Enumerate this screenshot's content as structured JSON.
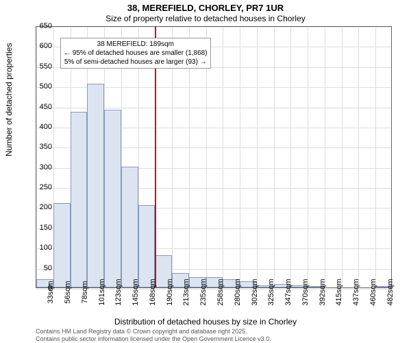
{
  "title_main": "38, MEREFIELD, CHORLEY, PR7 1UR",
  "title_sub": "Size of property relative to detached houses in Chorley",
  "ylabel": "Number of detached properties",
  "xlabel": "Distribution of detached houses by size in Chorley",
  "attribution_line1": "Contains HM Land Registry data © Crown copyright and database right 2025.",
  "attribution_line2": "Contains public sector information licensed under the Open Government Licence v3.0.",
  "info_line1": "38 MEREFIELD: 189sqm",
  "info_line2": "← 95% of detached houses are smaller (1,868)",
  "info_line3": "5% of semi-detached houses are larger (93) →",
  "ymax": 650,
  "yticks": [
    0,
    50,
    100,
    150,
    200,
    250,
    300,
    350,
    400,
    450,
    500,
    550,
    600,
    650
  ],
  "xticks": [
    "33sqm",
    "56sqm",
    "78sqm",
    "101sqm",
    "123sqm",
    "145sqm",
    "168sqm",
    "190sqm",
    "213sqm",
    "235sqm",
    "258sqm",
    "280sqm",
    "302sqm",
    "325sqm",
    "347sqm",
    "370sqm",
    "392sqm",
    "415sqm",
    "437sqm",
    "460sqm",
    "482sqm"
  ],
  "bars": [
    20,
    210,
    435,
    505,
    440,
    300,
    205,
    80,
    35,
    25,
    25,
    20,
    15,
    5,
    8,
    5,
    2,
    0,
    0,
    0,
    2
  ],
  "vline_index": 7,
  "bar_fill": "#dbe4f0",
  "bar_stroke": "#8899bb",
  "vline_color": "#cc0000",
  "grid_color": "#dddddd",
  "axis_color": "#666666"
}
